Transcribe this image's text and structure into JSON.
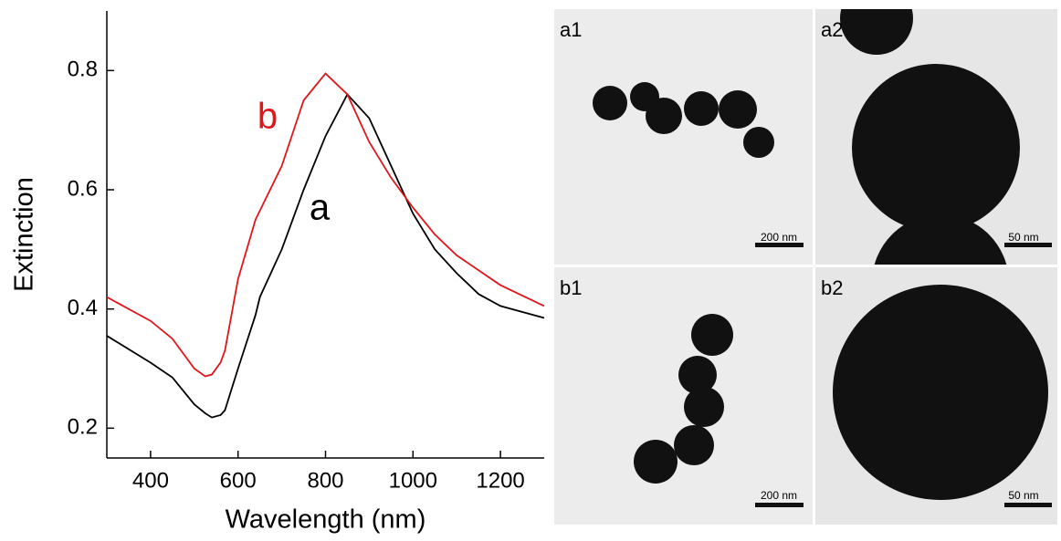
{
  "chart_data": {
    "type": "line",
    "xlabel": "Wavelength (nm)",
    "ylabel": "Extinction",
    "xlim": [
      300,
      1300
    ],
    "ylim": [
      0.15,
      0.9
    ],
    "xticks": [
      400,
      600,
      800,
      1000,
      1200
    ],
    "yticks": [
      0.2,
      0.4,
      0.6,
      0.8
    ],
    "x": [
      300,
      400,
      450,
      500,
      525,
      540,
      560,
      570,
      600,
      640,
      650,
      700,
      750,
      800,
      850,
      900,
      950,
      1000,
      1050,
      1100,
      1150,
      1200,
      1300
    ],
    "series": [
      {
        "name": "a",
        "color": "#000000",
        "values": [
          0.355,
          0.31,
          0.285,
          0.24,
          0.225,
          0.218,
          0.222,
          0.23,
          0.3,
          0.39,
          0.42,
          0.5,
          0.6,
          0.69,
          0.76,
          0.72,
          0.64,
          0.56,
          0.5,
          0.46,
          0.425,
          0.405,
          0.385
        ]
      },
      {
        "name": "b",
        "color": "#e0161b",
        "values": [
          0.42,
          0.38,
          0.35,
          0.3,
          0.287,
          0.29,
          0.31,
          0.33,
          0.45,
          0.55,
          0.565,
          0.64,
          0.75,
          0.795,
          0.76,
          0.68,
          0.62,
          0.57,
          0.525,
          0.49,
          0.465,
          0.44,
          0.405
        ]
      }
    ]
  },
  "images": [
    {
      "label": "a1",
      "scale_bar": "200 nm"
    },
    {
      "label": "a2",
      "scale_bar": "50 nm"
    },
    {
      "label": "b1",
      "scale_bar": "200 nm"
    },
    {
      "label": "b2",
      "scale_bar": "50 nm"
    }
  ]
}
